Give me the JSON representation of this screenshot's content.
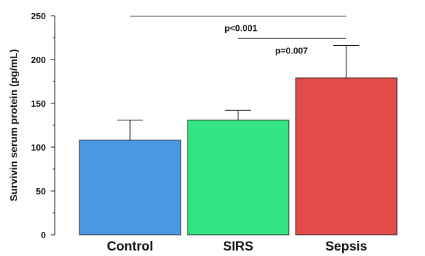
{
  "chart_data": {
    "type": "bar",
    "categories": [
      "Control",
      "SIRS",
      "Sepsis"
    ],
    "values": [
      108,
      131,
      179
    ],
    "error_upper": [
      131,
      142,
      216
    ],
    "colors": [
      "#4a98e3",
      "#33e582",
      "#e34b4b"
    ],
    "ylabel": "Survivin serum protein (pg/mL)",
    "ylim": [
      0,
      250
    ],
    "yticks": [
      0,
      50,
      100,
      150,
      200,
      250
    ],
    "grid": false,
    "annotations": [
      {
        "label": "p<0.001",
        "from": "Control",
        "to": "Sepsis"
      },
      {
        "label": "p=0.007",
        "from": "SIRS",
        "to": "Sepsis"
      }
    ]
  }
}
